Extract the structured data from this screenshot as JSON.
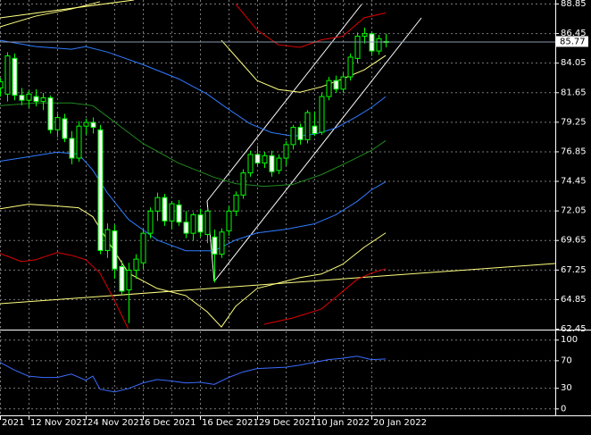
{
  "chart_data": [
    {
      "type": "candlestick",
      "categories": [
        "2021",
        null,
        null,
        null,
        "12 Nov 2021",
        null,
        null,
        null,
        null,
        null,
        null,
        null,
        "24 Nov 2021",
        null,
        null,
        null,
        null,
        null,
        null,
        null,
        "6 Dec 2021",
        null,
        null,
        null,
        null,
        null,
        null,
        null,
        "16 Dec 2021",
        null,
        null,
        null,
        null,
        null,
        null,
        null,
        "29 Dec 2021",
        null,
        null,
        null,
        null,
        null,
        null,
        null,
        "10 Jan 2022",
        null,
        null,
        null,
        null,
        null,
        null,
        null,
        "20 Jan 2022",
        null,
        null
      ],
      "open": [
        82.0,
        81.5,
        84.4,
        81.4,
        81.0,
        81.3,
        80.9,
        81.2,
        78.6,
        79.5,
        77.9,
        76.3,
        78.9,
        79.2,
        78.6,
        68.8,
        70.4,
        67.5,
        65.6,
        67.2,
        67.8,
        70.2,
        72.0,
        73.1,
        71.2,
        72.5,
        71.1,
        70.2,
        71.7,
        70.1,
        69.9,
        68.5,
        70.4,
        72.0,
        73.3,
        75.1,
        76.6,
        75.9,
        76.5,
        75.3,
        76.3,
        77.4,
        78.8,
        77.8,
        78.9,
        78.4,
        81.3,
        82.6,
        81.9,
        82.9,
        84.4,
        86.2,
        86.4,
        85.0,
        85.7
      ],
      "high": [
        82.8,
        84.9,
        84.8,
        82.0,
        81.8,
        81.9,
        81.6,
        81.4,
        79.9,
        79.9,
        78.5,
        79.3,
        79.5,
        79.6,
        79.0,
        71.0,
        70.9,
        68.0,
        67.8,
        68.5,
        70.5,
        72.3,
        73.5,
        73.4,
        72.8,
        72.9,
        72.0,
        71.9,
        72.2,
        72.3,
        70.5,
        70.6,
        72.4,
        73.6,
        75.4,
        76.9,
        77.3,
        76.8,
        76.9,
        76.6,
        77.7,
        79.0,
        79.1,
        80.2,
        80.1,
        81.6,
        82.9,
        83.0,
        83.2,
        84.8,
        86.5,
        86.9,
        86.6,
        86.3,
        86.4
      ],
      "low": [
        81.3,
        80.9,
        81.0,
        80.6,
        80.4,
        80.5,
        80.2,
        78.3,
        78.0,
        77.6,
        75.8,
        76.0,
        78.2,
        78.3,
        68.5,
        68.2,
        66.5,
        65.2,
        62.9,
        66.5,
        67.3,
        69.8,
        71.2,
        70.8,
        70.5,
        70.8,
        69.8,
        69.6,
        69.9,
        69.4,
        66.2,
        68.2,
        70.0,
        71.6,
        73.0,
        74.8,
        75.6,
        75.5,
        74.8,
        75.0,
        75.7,
        77.0,
        77.4,
        77.5,
        78.1,
        78.2,
        81.0,
        81.6,
        81.6,
        82.6,
        84.0,
        85.6,
        84.6,
        84.7,
        85.3
      ],
      "close": [
        82.5,
        84.6,
        81.4,
        81.0,
        81.5,
        80.9,
        81.2,
        78.6,
        79.6,
        77.9,
        76.3,
        78.9,
        79.2,
        78.8,
        68.8,
        70.5,
        67.3,
        65.5,
        67.2,
        68.1,
        70.2,
        72.0,
        73.1,
        71.2,
        72.6,
        71.1,
        70.2,
        71.7,
        70.3,
        72.0,
        68.5,
        70.3,
        72.0,
        73.3,
        75.1,
        76.6,
        75.9,
        76.5,
        75.2,
        76.3,
        77.4,
        78.8,
        77.8,
        80.0,
        78.3,
        81.3,
        82.6,
        81.9,
        82.9,
        84.5,
        86.2,
        86.4,
        85.0,
        86.0,
        85.77
      ],
      "up_color": "#000000",
      "down_color": "#ffffff",
      "candle_color": "#00ff00",
      "ylim": [
        62.45,
        89.14
      ],
      "yticks": [
        88.85,
        86.45,
        84.05,
        81.65,
        79.25,
        76.85,
        74.45,
        72.05,
        69.65,
        67.25,
        64.85,
        62.45
      ],
      "grid": true,
      "current_price": 85.77,
      "overlays": [
        {
          "color": "#e00000",
          "x": [
            33,
            36,
            39,
            42,
            45,
            48,
            51,
            54
          ],
          "values": [
            88.8,
            86.7,
            85.5,
            85.3,
            85.9,
            86.2,
            87.7,
            88.1
          ]
        },
        {
          "color": "#e00000",
          "x": [
            0,
            3,
            5,
            8,
            10,
            12,
            14,
            16,
            18,
            27,
            37,
            41,
            45,
            47,
            50,
            52,
            54
          ],
          "values": [
            68.56,
            67.9,
            68.05,
            68.63,
            68.41,
            68.05,
            66.96,
            64.78,
            62.38,
            null,
            62.81,
            63.32,
            64.05,
            65.0,
            66.45,
            66.96,
            67.32
          ]
        },
        {
          "color": "#2f7cff",
          "x": [
            0,
            5,
            10,
            12,
            15,
            20,
            25,
            29,
            32,
            35,
            38,
            41,
            44,
            47,
            50,
            52,
            54
          ],
          "values": [
            85.87,
            85.36,
            85.14,
            85.36,
            84.92,
            83.9,
            82.74,
            81.5,
            80.27,
            79.1,
            78.38,
            78.09,
            78.23,
            78.74,
            79.69,
            80.41,
            81.29
          ]
        },
        {
          "color": "#2f7cff",
          "x": [
            0,
            4,
            8,
            11,
            13,
            15,
            18,
            22,
            26,
            30,
            33,
            36,
            40,
            44,
            47,
            50,
            52,
            54
          ],
          "values": [
            76.05,
            76.41,
            76.78,
            76.63,
            75.32,
            73.5,
            71.32,
            69.65,
            68.78,
            68.78,
            69.65,
            70.23,
            70.52,
            70.96,
            71.69,
            72.78,
            73.72,
            74.38
          ]
        },
        {
          "color": "#1f8a1f",
          "x": [
            0,
            5,
            10,
            13,
            15,
            20,
            25,
            30,
            33,
            37,
            41,
            45,
            49,
            52,
            54
          ],
          "values": [
            80.56,
            80.78,
            80.78,
            80.56,
            79.69,
            77.5,
            75.9,
            74.74,
            74.23,
            74.01,
            74.16,
            74.96,
            76.05,
            76.92,
            77.72
          ]
        },
        {
          "color": "#ffff80",
          "x": [
            0,
            5,
            10,
            14,
            22,
            31,
            34,
            36,
            39,
            42,
            45,
            48,
            51,
            54
          ],
          "values": [
            86.96,
            87.83,
            88.41,
            89.0,
            null,
            85.87,
            83.9,
            82.6,
            81.87,
            81.65,
            82.09,
            82.74,
            83.47,
            84.63
          ]
        },
        {
          "color": "#ffff80",
          "x": [
            0,
            4,
            8,
            11,
            13,
            15,
            18,
            22,
            26,
            29,
            31,
            33,
            36,
            39,
            42,
            45,
            48,
            51,
            54
          ],
          "values": [
            72.19,
            72.56,
            72.41,
            72.27,
            71.54,
            69.65,
            66.96,
            65.72,
            65.14,
            63.83,
            62.59,
            64.27,
            65.72,
            66.16,
            66.6,
            66.89,
            67.69,
            69.07,
            70.23
          ]
        }
      ]
    },
    {
      "type": "line",
      "color": "#3a6cff",
      "x": [
        0,
        2,
        4,
        6,
        8,
        10,
        12,
        13,
        14,
        16,
        18,
        20,
        22,
        24,
        26,
        28,
        30,
        32,
        34,
        36,
        38,
        40,
        42,
        44,
        46,
        48,
        50,
        52,
        54
      ],
      "values": [
        67,
        56,
        47,
        45,
        45,
        50,
        41,
        47,
        28,
        24,
        29,
        37,
        42,
        40,
        37,
        38,
        35,
        45,
        53,
        58,
        59,
        60,
        63,
        67,
        71,
        73,
        76,
        71,
        72
      ],
      "ylim": [
        -10,
        112
      ],
      "yticks": [
        100,
        70,
        30,
        0
      ],
      "grid": true
    }
  ]
}
